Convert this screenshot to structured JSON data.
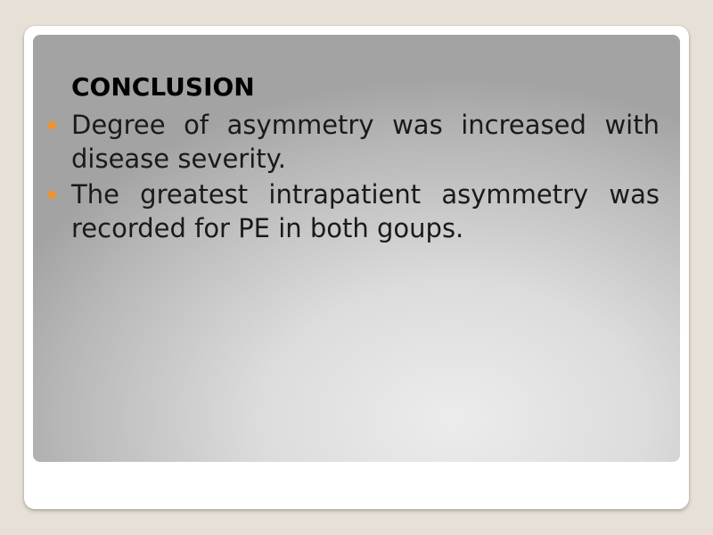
{
  "slide": {
    "title": "CONCLUSION",
    "bullets": [
      "Degree of asymmetry was increased with disease severity.",
      "The greatest intrapatient asymmetry was recorded for PE in both goups."
    ]
  },
  "colors": {
    "bullet": "#f0932b",
    "background": "#e6e0d6"
  },
  "icons": {
    "bullet": "bullet-dot-icon"
  }
}
